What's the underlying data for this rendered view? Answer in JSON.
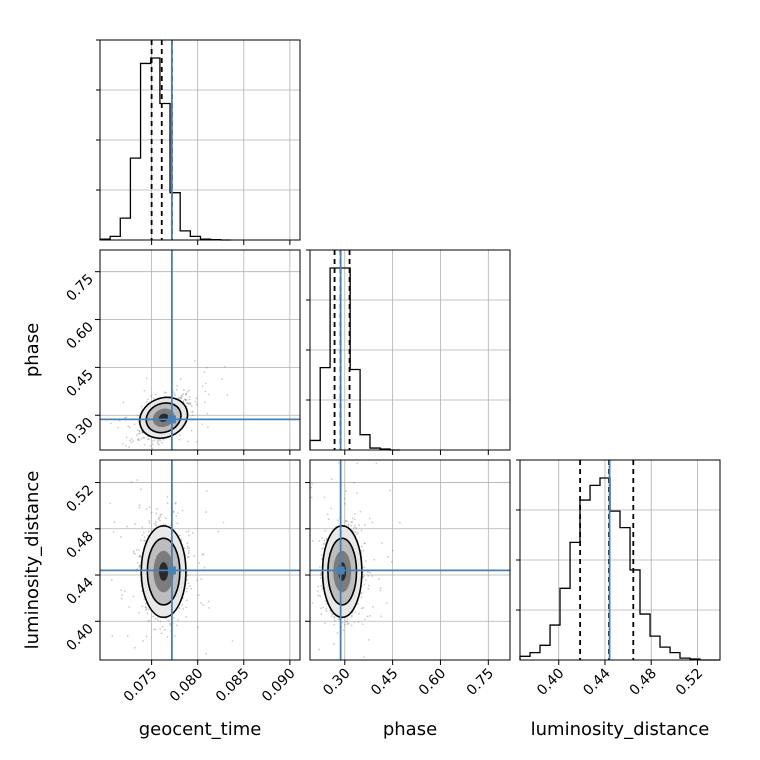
{
  "chart_data": {
    "type": "corner",
    "parameters": [
      "geocent_time",
      "phase",
      "luminosity_distance"
    ],
    "labels": {
      "geocent_time": "geocent_time",
      "phase": "phase",
      "luminosity_distance": "luminosity_distance"
    },
    "ranges": {
      "geocent_time": [
        0.0694,
        0.0911
      ],
      "phase": [
        0.191,
        0.818
      ],
      "luminosity_distance": [
        0.3665,
        0.5395
      ]
    },
    "ticks": {
      "geocent_time": [
        0.075,
        0.08,
        0.085,
        0.09
      ],
      "phase": [
        0.3,
        0.45,
        0.6,
        0.75
      ],
      "luminosity_distance": [
        0.4,
        0.44,
        0.48,
        0.52
      ]
    },
    "tick_labels": {
      "geocent_time": [
        "0.075",
        "0.080",
        "0.085",
        "0.090"
      ],
      "phase": [
        "0.30",
        "0.45",
        "0.60",
        "0.75"
      ],
      "luminosity_distance": [
        "0.40",
        "0.44",
        "0.48",
        "0.52"
      ]
    },
    "truths": {
      "geocent_time": 0.0772,
      "phase": 0.287,
      "luminosity_distance": 0.444
    },
    "quantiles": {
      "geocent_time": [
        0.075,
        0.0761,
        0.0772
      ],
      "phase": [
        0.268,
        0.287,
        0.315
      ],
      "luminosity_distance": [
        0.4185,
        0.4435,
        0.4645
      ]
    },
    "histograms": {
      "geocent_time": {
        "bin_edges": [
          0.0694,
          0.0705,
          0.0716,
          0.0727,
          0.0738,
          0.0749,
          0.0759,
          0.077,
          0.0781,
          0.0792,
          0.0803,
          0.0814,
          0.0825,
          0.0836
        ],
        "counts": [
          0.005,
          0.02,
          0.12,
          0.45,
          0.97,
          1.0,
          0.75,
          0.26,
          0.05,
          0.02,
          0.005,
          0.002,
          0.0
        ]
      },
      "phase": {
        "bin_edges": [
          0.191,
          0.223,
          0.254,
          0.285,
          0.317,
          0.348,
          0.379,
          0.411,
          0.442,
          0.473
        ],
        "counts": [
          0.05,
          0.43,
          0.95,
          0.95,
          0.42,
          0.08,
          0.01,
          0.005,
          0.0
        ]
      },
      "luminosity_distance": {
        "bin_edges": [
          0.3665,
          0.3752,
          0.3838,
          0.3925,
          0.4011,
          0.4098,
          0.4184,
          0.4271,
          0.4357,
          0.4444,
          0.453,
          0.4617,
          0.4703,
          0.479,
          0.4876,
          0.4963,
          0.5049,
          0.5136,
          0.5222,
          0.5309,
          0.5395
        ],
        "counts": [
          0.02,
          0.04,
          0.08,
          0.19,
          0.39,
          0.64,
          0.87,
          0.95,
          0.99,
          0.81,
          0.72,
          0.49,
          0.25,
          0.13,
          0.07,
          0.04,
          0.01,
          0.005,
          0.0,
          0.0
        ]
      }
    },
    "grid": true,
    "legend": "none"
  }
}
